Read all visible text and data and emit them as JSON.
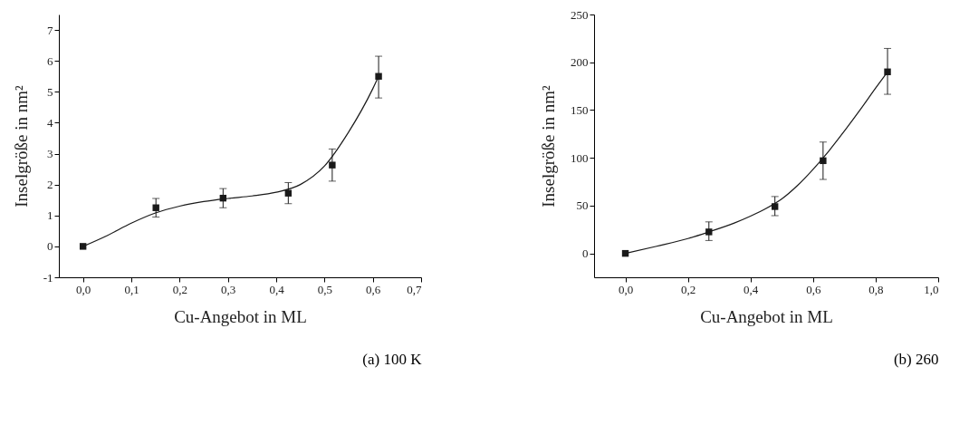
{
  "chart_data": [
    {
      "type": "scatter",
      "xlabel": "Cu-Angebot in ML",
      "ylabel": "Inselgröße in nm²",
      "annotations": [
        "(a) 100 K"
      ],
      "xlim": [
        -0.05,
        0.7
      ],
      "ylim": [
        -1,
        7.5
      ],
      "xticks": [
        {
          "value": 0,
          "label": "0,0"
        },
        {
          "value": 0.1,
          "label": "0,1"
        },
        {
          "value": 0.2,
          "label": "0,2"
        },
        {
          "value": 0.3,
          "label": "0,3"
        },
        {
          "value": 0.4,
          "label": "0,4"
        },
        {
          "value": 0.5,
          "label": "0,5"
        },
        {
          "value": 0.6,
          "label": "0,6"
        },
        {
          "value": 0.7,
          "label": "0,7"
        }
      ],
      "yticks": [
        -1,
        0,
        1,
        2,
        3,
        4,
        5,
        6,
        7
      ],
      "grid": false,
      "marker": "square",
      "series": [
        {
          "type": "scatter",
          "color": "#1a1a1a",
          "x": [
            0,
            0.151,
            0.29,
            0.425,
            0.516,
            0.612
          ],
          "values": [
            0,
            1.25,
            1.56,
            1.72,
            2.63,
            5.5
          ],
          "errors": [
            null,
            0.3,
            0.31,
            0.34,
            0.52,
            [
              4.8,
              6.15
            ]
          ]
        },
        {
          "type": "line",
          "marker": "none",
          "color": "#1a1a1a",
          "x": [
            0,
            0.05,
            0.1,
            0.15,
            0.2,
            0.25,
            0.3,
            0.35,
            0.4,
            0.45,
            0.5,
            0.55,
            0.6,
            0.612
          ],
          "values": [
            0,
            0.35,
            0.75,
            1.08,
            1.3,
            1.45,
            1.55,
            1.63,
            1.75,
            2.0,
            2.6,
            3.7,
            5.1,
            5.5
          ]
        }
      ]
    },
    {
      "type": "scatter",
      "xlabel": "Cu-Angebot in ML",
      "ylabel": "Inselgröße in nm²",
      "annotations": [
        "(b) 260"
      ],
      "xlim": [
        -0.1,
        1.0
      ],
      "ylim": [
        -25,
        250
      ],
      "xticks": [
        {
          "value": 0,
          "label": "0,0"
        },
        {
          "value": 0.2,
          "label": "0,2"
        },
        {
          "value": 0.4,
          "label": "0,4"
        },
        {
          "value": 0.6,
          "label": "0,6"
        },
        {
          "value": 0.8,
          "label": "0,8"
        },
        {
          "value": 1.0,
          "label": "1,0"
        }
      ],
      "yticks": [
        0,
        50,
        100,
        150,
        200,
        250
      ],
      "grid": false,
      "marker": "square",
      "series": [
        {
          "type": "scatter",
          "color": "#1a1a1a",
          "x": [
            0,
            0.267,
            0.478,
            0.632,
            0.838
          ],
          "values": [
            0,
            22.5,
            49,
            97,
            190
          ],
          "errors": [
            null,
            [
              13.5,
              33
            ],
            [
              39.5,
              59.5
            ],
            [
              77.5,
              116.5
            ],
            [
              166.5,
              214.5
            ]
          ]
        },
        {
          "type": "line",
          "marker": "none",
          "color": "#1a1a1a",
          "x": [
            0,
            0.1,
            0.2,
            0.267,
            0.35,
            0.4,
            0.45,
            0.5,
            0.55,
            0.6,
            0.65,
            0.7,
            0.75,
            0.8,
            0.838
          ],
          "values": [
            0,
            7.5,
            15.5,
            22.5,
            32,
            39,
            47,
            57,
            71,
            88,
            107,
            128,
            150,
            173,
            190
          ]
        }
      ]
    }
  ]
}
